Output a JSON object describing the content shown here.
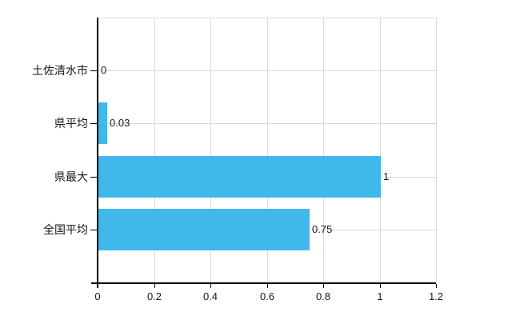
{
  "chart_data": {
    "type": "bar",
    "orientation": "horizontal",
    "categories": [
      "土佐清水市",
      "県平均",
      "県最大",
      "全国平均"
    ],
    "values": [
      0,
      0.03,
      1,
      0.75
    ],
    "value_labels": [
      "0",
      "0.03",
      "1",
      "0.75"
    ],
    "xlim": [
      0,
      1.2
    ],
    "x_ticks": [
      0,
      0.2,
      0.4,
      0.6,
      0.8,
      1,
      1.2
    ],
    "x_tick_labels": [
      "0",
      "0.2",
      "0.4",
      "0.6",
      "0.8",
      "1",
      "1.2"
    ],
    "bar_color": "#41b8ec",
    "grid_color": "#d9d9d9",
    "axis_color": "#000000",
    "text_color": "#1a1a1a",
    "title": "",
    "xlabel": "",
    "ylabel": "",
    "legend_visible": false,
    "grid": true
  }
}
